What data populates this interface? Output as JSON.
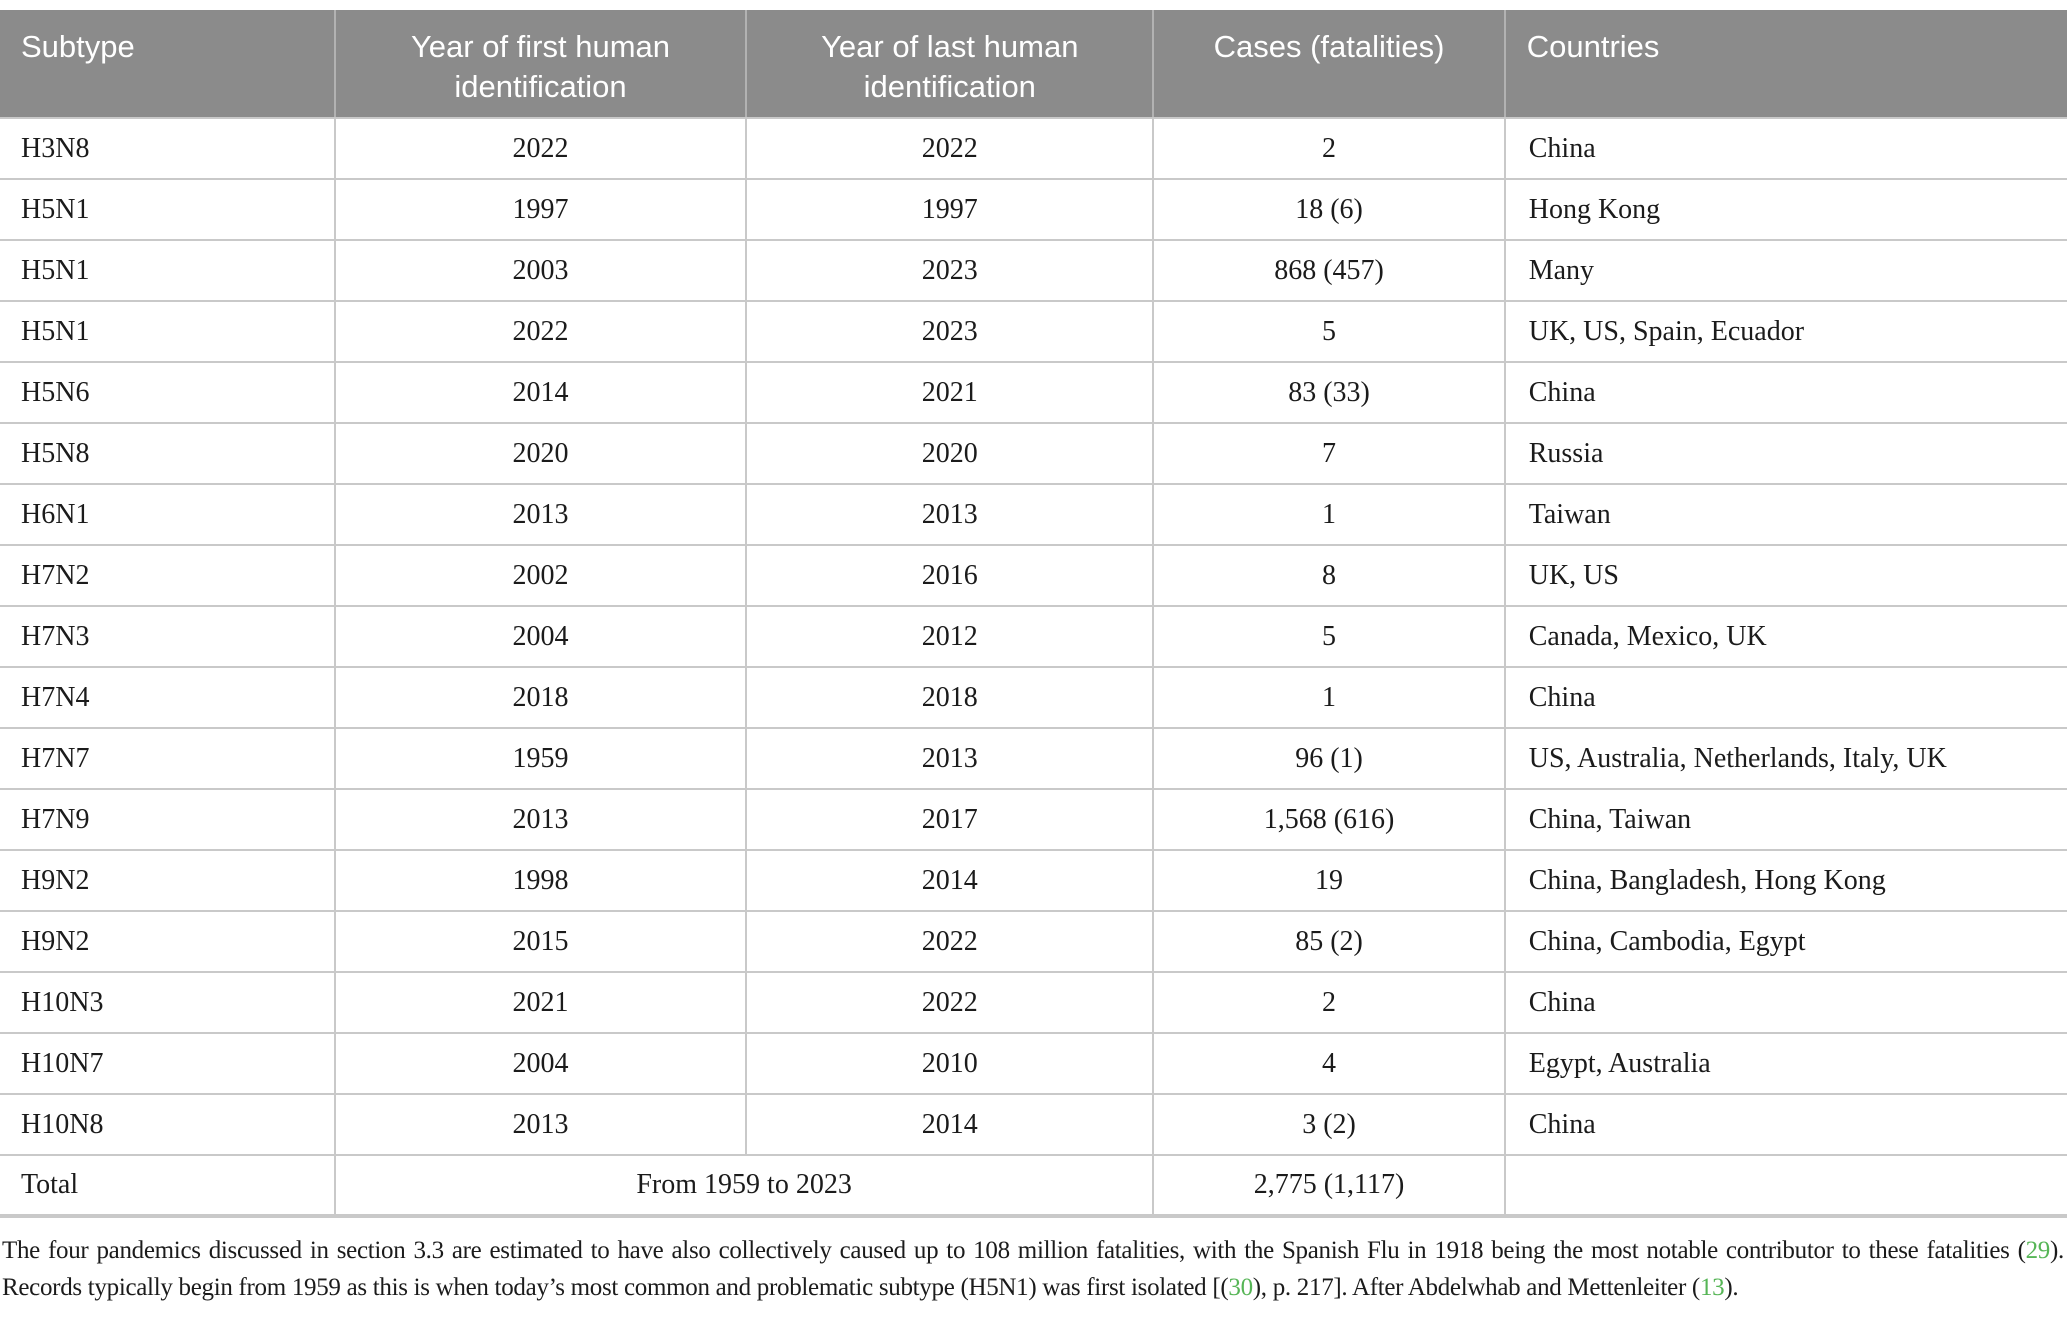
{
  "table": {
    "columns": [
      {
        "label": "Subtype",
        "align": "left"
      },
      {
        "label": "Year of first human identification",
        "align": "center"
      },
      {
        "label": "Year of last human identification",
        "align": "center"
      },
      {
        "label": "Cases (fatalities)",
        "align": "center"
      },
      {
        "label": "Countries",
        "align": "left"
      }
    ],
    "rows": [
      [
        "H3N8",
        "2022",
        "2022",
        "2",
        "China"
      ],
      [
        "H5N1",
        "1997",
        "1997",
        "18 (6)",
        "Hong Kong"
      ],
      [
        "H5N1",
        "2003",
        "2023",
        "868 (457)",
        "Many"
      ],
      [
        "H5N1",
        "2022",
        "2023",
        "5",
        "UK, US, Spain, Ecuador"
      ],
      [
        "H5N6",
        "2014",
        "2021",
        "83 (33)",
        "China"
      ],
      [
        "H5N8",
        "2020",
        "2020",
        "7",
        "Russia"
      ],
      [
        "H6N1",
        "2013",
        "2013",
        "1",
        "Taiwan"
      ],
      [
        "H7N2",
        "2002",
        "2016",
        "8",
        "UK, US"
      ],
      [
        "H7N3",
        "2004",
        "2012",
        "5",
        "Canada, Mexico, UK"
      ],
      [
        "H7N4",
        "2018",
        "2018",
        "1",
        "China"
      ],
      [
        "H7N7",
        "1959",
        "2013",
        "96 (1)",
        "US, Australia, Netherlands, Italy, UK"
      ],
      [
        "H7N9",
        "2013",
        "2017",
        "1,568 (616)",
        "China, Taiwan"
      ],
      [
        "H9N2",
        "1998",
        "2014",
        "19",
        "China, Bangladesh, Hong Kong"
      ],
      [
        "H9N2",
        "2015",
        "2022",
        "85 (2)",
        "China, Cambodia, Egypt"
      ],
      [
        "H10N3",
        "2021",
        "2022",
        "2",
        "China"
      ],
      [
        "H10N7",
        "2004",
        "2010",
        "4",
        "Egypt, Australia"
      ],
      [
        "H10N8",
        "2013",
        "2014",
        "3 (2)",
        "China"
      ]
    ],
    "total_row": {
      "label": "Total",
      "years_span": "From 1959 to 2023",
      "cases": "2,775 (1,117)",
      "countries": ""
    }
  },
  "footnote": {
    "segments": [
      {
        "type": "text",
        "text": "The four pandemics discussed in section 3.3 are estimated to have also collectively caused up to 108 million fatalities, with the Spanish Flu in 1918 being the most notable contributor to these fatalities ("
      },
      {
        "type": "ref",
        "text": "29"
      },
      {
        "type": "text",
        "text": "). Records typically begin from 1959 as this is when today’s most common and problematic subtype (H5N1) was first isolated [("
      },
      {
        "type": "ref",
        "text": "30"
      },
      {
        "type": "text",
        "text": "), p. 217]. After Abdelwhab and Mettenleiter ("
      },
      {
        "type": "ref",
        "text": "13"
      },
      {
        "type": "text",
        "text": ")."
      }
    ]
  },
  "colors": {
    "header_bg": "#8b8b8b",
    "header_text": "#ffffff",
    "border": "#c9c9c9",
    "body_text": "#1b1b1b",
    "reference_green": "#56b556"
  }
}
